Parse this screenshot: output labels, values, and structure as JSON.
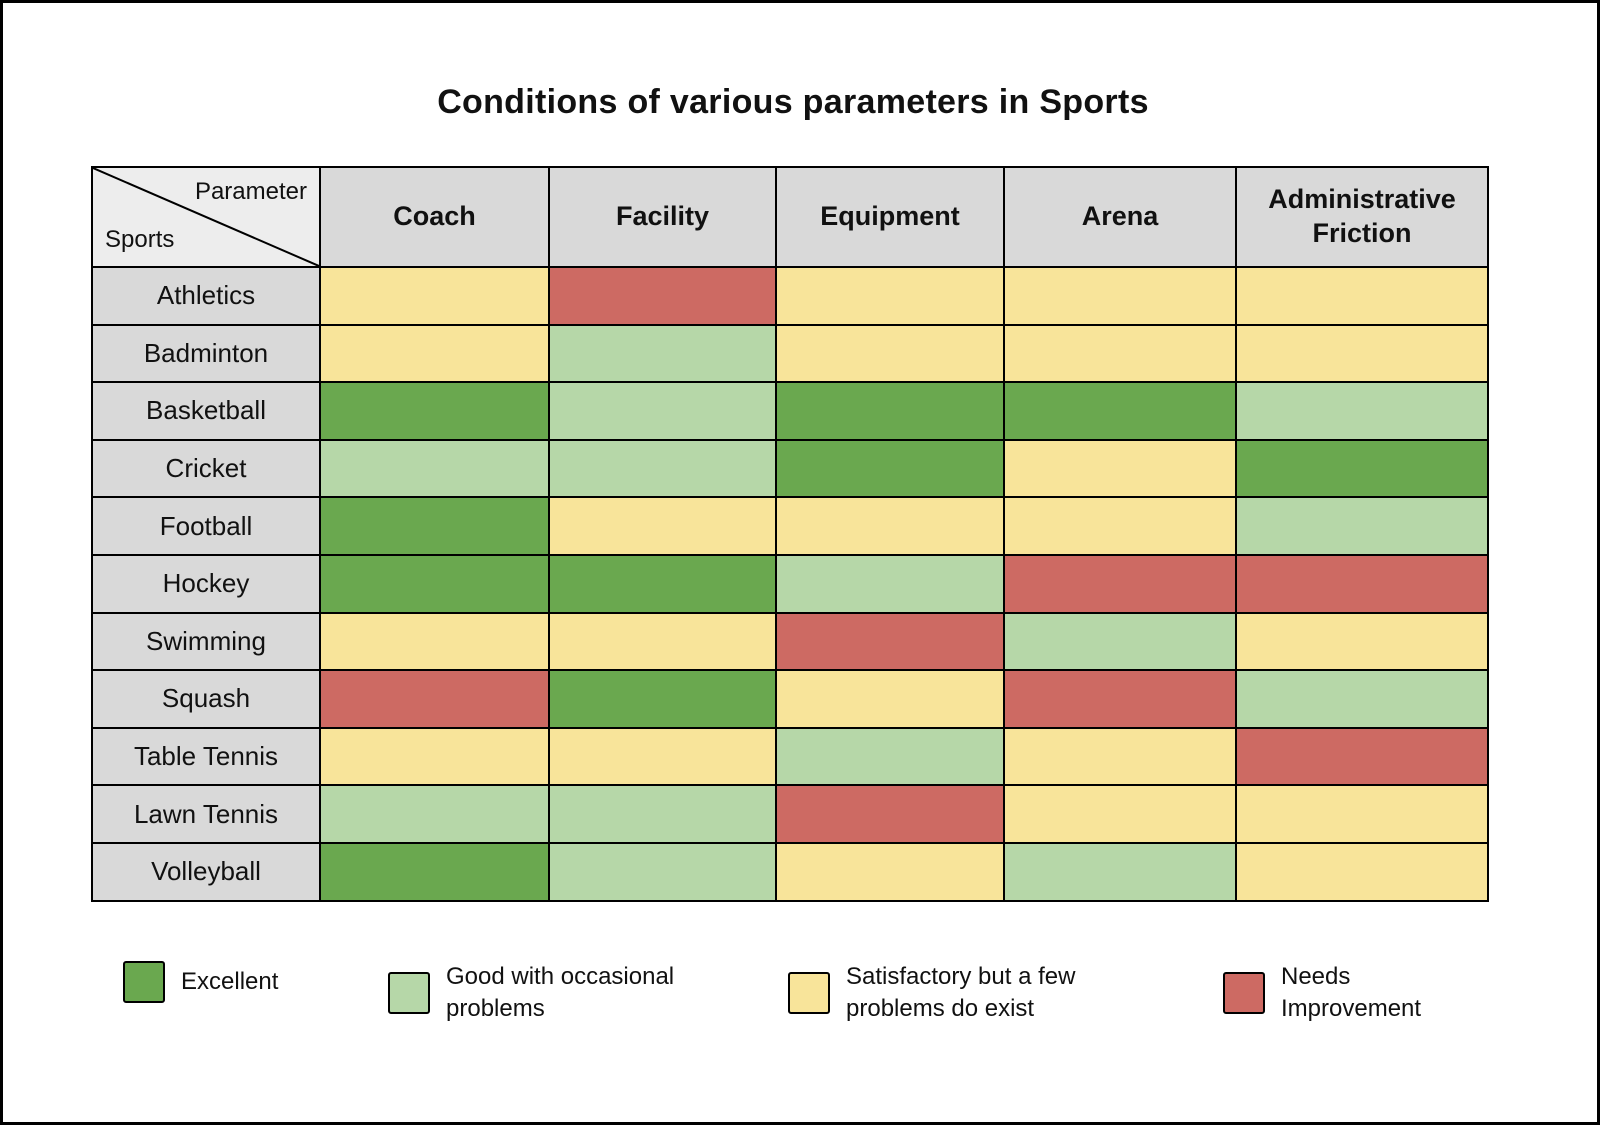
{
  "chart_data": {
    "type": "heatmap",
    "title": "Conditions of various parameters in Sports",
    "corner": {
      "parameter_label": "Parameter",
      "sports_label": "Sports"
    },
    "columns": [
      "Coach",
      "Facility",
      "Equipment",
      "Arena",
      "Administrative Friction"
    ],
    "rows": [
      "Athletics",
      "Badminton",
      "Basketball",
      "Cricket",
      "Football",
      "Hockey",
      "Swimming",
      "Squash",
      "Table Tennis",
      "Lawn Tennis",
      "Volleyball"
    ],
    "values": [
      [
        "satisfactory",
        "needs-improvement",
        "satisfactory",
        "satisfactory",
        "satisfactory"
      ],
      [
        "satisfactory",
        "good",
        "satisfactory",
        "satisfactory",
        "satisfactory"
      ],
      [
        "excellent",
        "good",
        "excellent",
        "excellent",
        "good"
      ],
      [
        "good",
        "good",
        "excellent",
        "satisfactory",
        "excellent"
      ],
      [
        "excellent",
        "satisfactory",
        "satisfactory",
        "satisfactory",
        "good"
      ],
      [
        "excellent",
        "excellent",
        "good",
        "needs-improvement",
        "needs-improvement"
      ],
      [
        "satisfactory",
        "satisfactory",
        "needs-improvement",
        "good",
        "satisfactory"
      ],
      [
        "needs-improvement",
        "excellent",
        "satisfactory",
        "needs-improvement",
        "good"
      ],
      [
        "satisfactory",
        "satisfactory",
        "good",
        "satisfactory",
        "needs-improvement"
      ],
      [
        "good",
        "good",
        "needs-improvement",
        "satisfactory",
        "satisfactory"
      ],
      [
        "excellent",
        "good",
        "satisfactory",
        "good",
        "satisfactory"
      ]
    ],
    "scale": {
      "excellent": {
        "label": "Excellent",
        "color": "#6aa84f"
      },
      "good": {
        "label": "Good with occasional problems",
        "color": "#b6d7a8"
      },
      "satisfactory": {
        "label": "Satisfactory but a few problems do exist",
        "color": "#f8e49a"
      },
      "needs-improvement": {
        "label": "Needs Improvement",
        "color": "#cd6a63"
      }
    },
    "legend_order": [
      "excellent",
      "good",
      "satisfactory",
      "needs-improvement"
    ],
    "header_background": "#d9d9d9",
    "corner_background": "#ededed"
  }
}
